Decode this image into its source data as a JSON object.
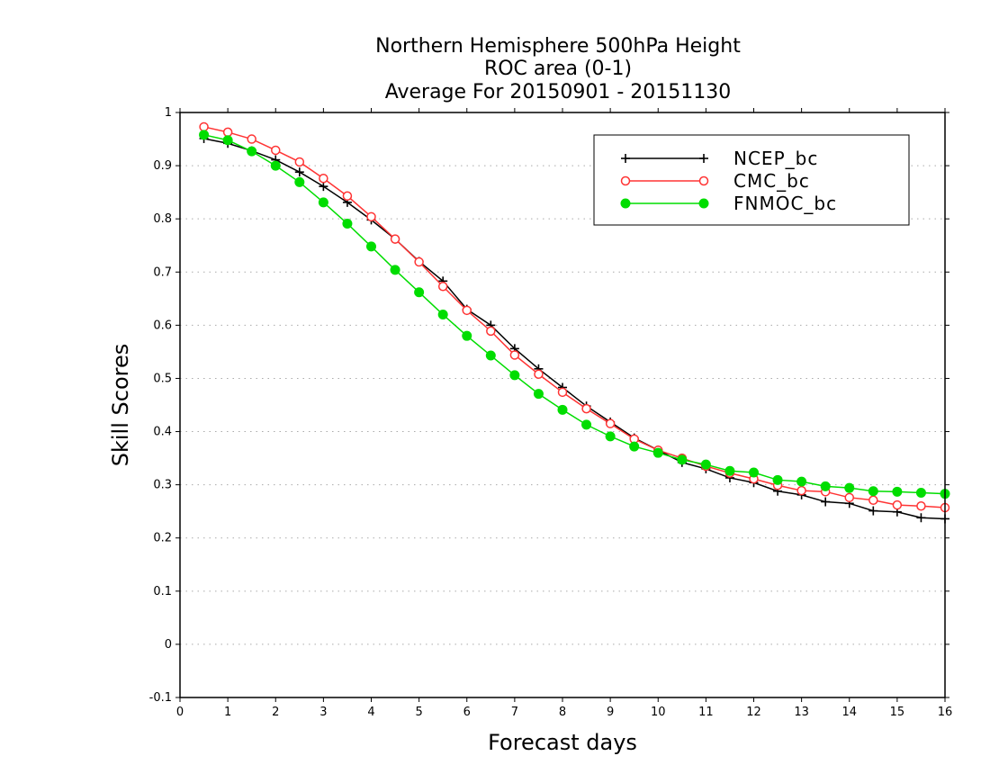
{
  "chart_data": {
    "type": "line",
    "title": [
      "Northern Hemisphere 500hPa Height",
      "ROC area (0-1)",
      "Average For 20150901 - 20151130"
    ],
    "xlabel": "Forecast days",
    "ylabel": "Skill Scores",
    "xlim": [
      0,
      16
    ],
    "ylim": [
      -0.1,
      1
    ],
    "xticks": [
      "0",
      "1",
      "2",
      "3",
      "4",
      "5",
      "6",
      "7",
      "8",
      "9",
      "10",
      "11",
      "12",
      "13",
      "14",
      "15",
      "16"
    ],
    "yticks": [
      "-0.1",
      "0",
      "0.1",
      "0.2",
      "0.3",
      "0.4",
      "0.5",
      "0.6",
      "0.7",
      "0.8",
      "0.9",
      "1"
    ],
    "grid": "horizontal dotted",
    "legend_position": "top-right",
    "x": [
      0.5,
      1,
      1.5,
      2,
      2.5,
      3,
      3.5,
      4,
      4.5,
      5,
      5.5,
      6,
      6.5,
      7,
      7.5,
      8,
      8.5,
      9,
      9.5,
      10,
      10.5,
      11,
      11.5,
      12,
      12.5,
      13,
      13.5,
      14,
      14.5,
      15,
      15.5,
      16
    ],
    "series": [
      {
        "name": "NCEP_bc",
        "color": "#000000",
        "marker": "plus",
        "values": [
          0.951,
          0.942,
          0.928,
          0.911,
          0.888,
          0.861,
          0.831,
          0.798,
          0.762,
          0.72,
          0.683,
          0.63,
          0.6,
          0.556,
          0.518,
          0.483,
          0.448,
          0.418,
          0.388,
          0.365,
          0.342,
          0.33,
          0.313,
          0.304,
          0.288,
          0.281,
          0.268,
          0.265,
          0.251,
          0.249,
          0.238,
          0.236
        ]
      },
      {
        "name": "CMC_bc",
        "color": "#ff3333",
        "marker": "open-circle",
        "values": [
          0.973,
          0.963,
          0.95,
          0.929,
          0.907,
          0.876,
          0.843,
          0.804,
          0.762,
          0.719,
          0.673,
          0.628,
          0.589,
          0.544,
          0.508,
          0.474,
          0.443,
          0.415,
          0.386,
          0.365,
          0.35,
          0.335,
          0.322,
          0.311,
          0.299,
          0.289,
          0.287,
          0.276,
          0.271,
          0.262,
          0.26,
          0.257
        ]
      },
      {
        "name": "FNMOC_bc",
        "color": "#00dd00",
        "marker": "filled-circle",
        "values": [
          0.958,
          0.948,
          0.927,
          0.9,
          0.869,
          0.831,
          0.791,
          0.748,
          0.704,
          0.662,
          0.62,
          0.58,
          0.543,
          0.506,
          0.471,
          0.441,
          0.413,
          0.391,
          0.372,
          0.36,
          0.347,
          0.338,
          0.326,
          0.323,
          0.309,
          0.306,
          0.297,
          0.294,
          0.288,
          0.287,
          0.285,
          0.283
        ]
      }
    ]
  }
}
